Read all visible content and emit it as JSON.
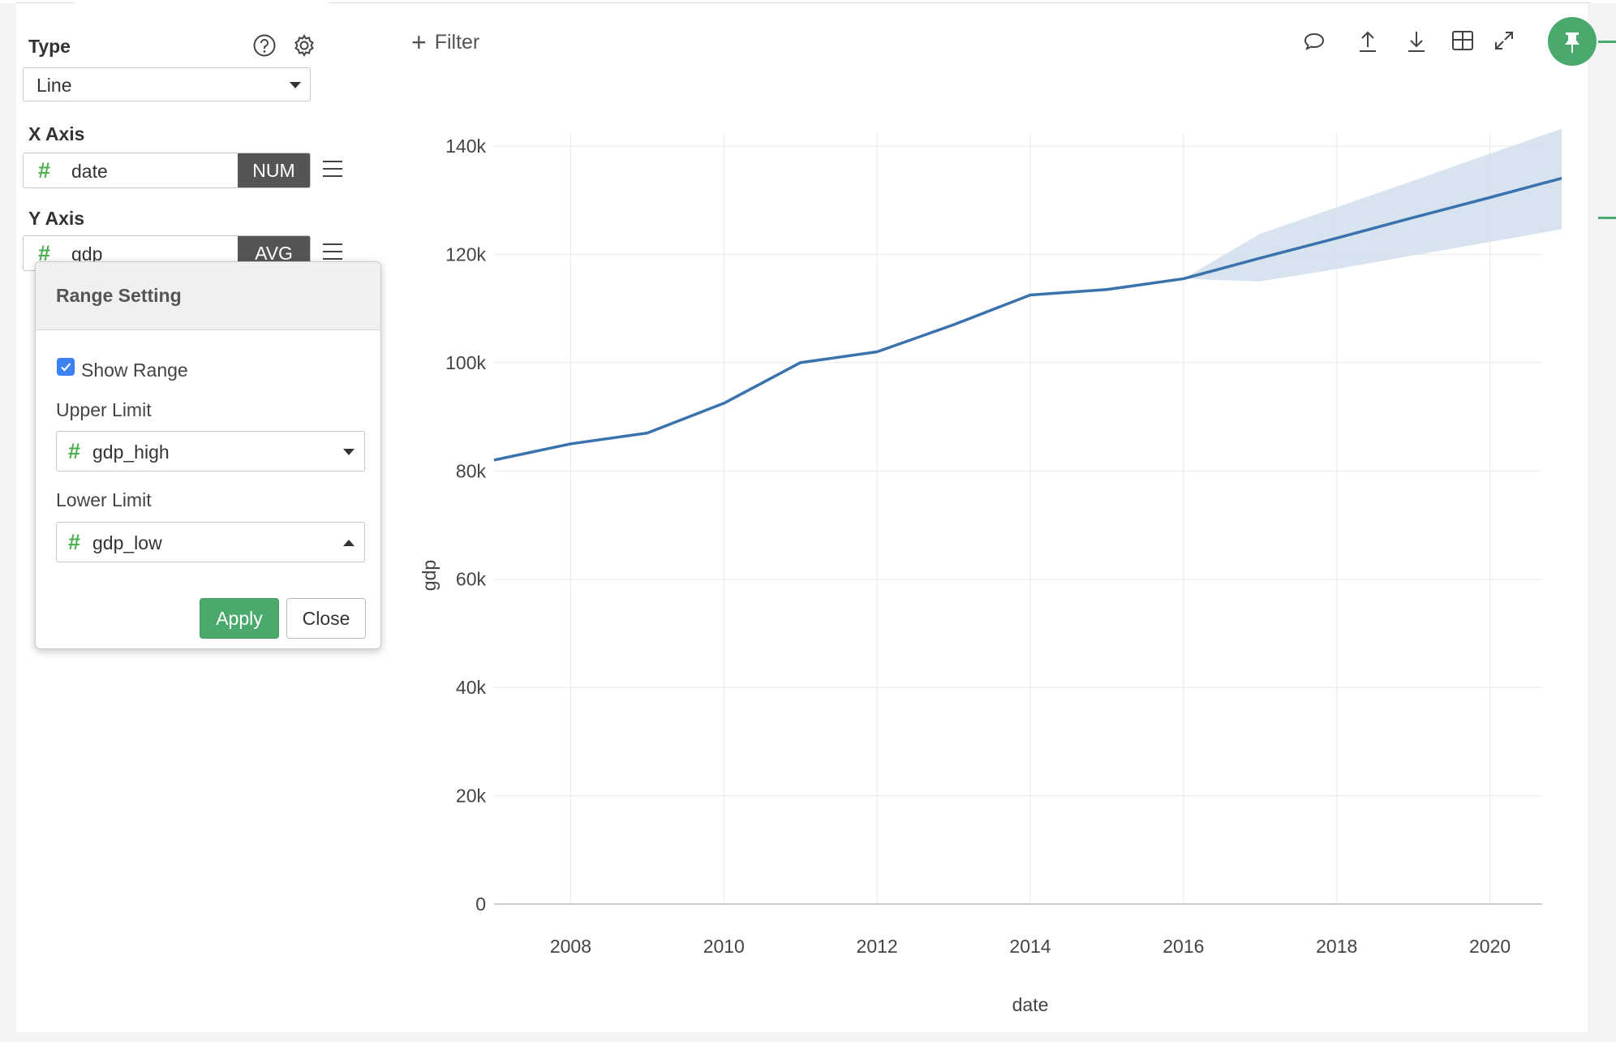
{
  "sidebar": {
    "type_label": "Type",
    "type_value": "Line",
    "x_axis_label": "X Axis",
    "x_axis_field": {
      "icon": "#",
      "name": "date",
      "aggregation": "NUM"
    },
    "y_axis_label": "Y Axis",
    "y_axis_field": {
      "icon": "#",
      "name": "gdp",
      "aggregation": "AVG"
    }
  },
  "range_popover": {
    "title": "Range Setting",
    "show_range_label": "Show Range",
    "show_range_checked": true,
    "upper_limit_label": "Upper Limit",
    "upper_limit_value": "gdp_high",
    "lower_limit_label": "Lower Limit",
    "lower_limit_value": "gdp_low",
    "apply_label": "Apply",
    "close_label": "Close",
    "field_icon": "#"
  },
  "toolbar": {
    "filter_icon": "+",
    "filter_label": "Filter",
    "icons": [
      "comment-icon",
      "upload-icon",
      "download-icon",
      "table-icon",
      "expand-icon",
      "pin-icon"
    ]
  },
  "colors": {
    "accent_green": "#4aa96c",
    "line_blue": "#3a72ad",
    "band_blue": "#d4e0ee",
    "agg_bg": "#555555"
  },
  "chart_data": {
    "type": "line",
    "xlabel": "date",
    "ylabel": "gdp",
    "xlim": [
      2007,
      2021
    ],
    "ylim": [
      0,
      140000
    ],
    "x_ticks": [
      2008,
      2010,
      2012,
      2014,
      2016,
      2018,
      2020
    ],
    "y_ticks": [
      0,
      20000,
      40000,
      60000,
      80000,
      100000,
      120000,
      140000
    ],
    "y_tick_labels": [
      "0",
      "20k",
      "40k",
      "60k",
      "80k",
      "100k",
      "120k",
      "140k"
    ],
    "series": [
      {
        "x": [
          2007,
          2008,
          2009,
          2010,
          2011,
          2012,
          2013,
          2014,
          2015,
          2016,
          2017,
          2018,
          2019,
          2020,
          2021
        ],
        "values": [
          82000,
          85000,
          87000,
          92500,
          100000,
          102000,
          107000,
          112500,
          113500,
          115500,
          119300,
          123000,
          126800,
          130500,
          134300
        ]
      }
    ],
    "range_band": {
      "x": [
        2016,
        2017,
        2018,
        2019,
        2020,
        2021
      ],
      "upper": [
        115500,
        123800,
        128700,
        133600,
        138600,
        143500
      ],
      "lower": [
        115500,
        115000,
        117300,
        119800,
        122300,
        124800
      ]
    }
  }
}
